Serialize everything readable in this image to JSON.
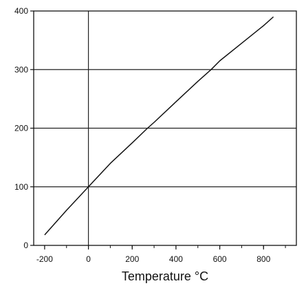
{
  "chart_data": {
    "type": "line",
    "title": "",
    "xlabel": "Temperature  °C",
    "ylabel": "",
    "xlim": [
      -250,
      950
    ],
    "ylim": [
      0,
      400
    ],
    "x_ticks": [
      -200,
      0,
      200,
      400,
      600,
      800
    ],
    "x_tick_labels": [
      "-200",
      "0",
      "200",
      "400",
      "600",
      "800"
    ],
    "y_ticks": [
      0,
      100,
      200,
      300,
      400
    ],
    "y_tick_labels": [
      "0",
      "100",
      "200",
      "300",
      "400"
    ],
    "grid": "horizontal lines at 100, 200, 300; vertical line at 0",
    "series": [
      {
        "x": [
          -200,
          -100,
          0,
          100,
          200,
          270,
          300,
          400,
          500,
          560,
          600,
          700,
          800,
          845
        ],
        "y": [
          18,
          60,
          100,
          140,
          175,
          200,
          210,
          245,
          280,
          300,
          315,
          345,
          375,
          390
        ]
      }
    ],
    "colors": {
      "line": "#111111",
      "axis": "#111111",
      "grid": "#222222"
    }
  }
}
